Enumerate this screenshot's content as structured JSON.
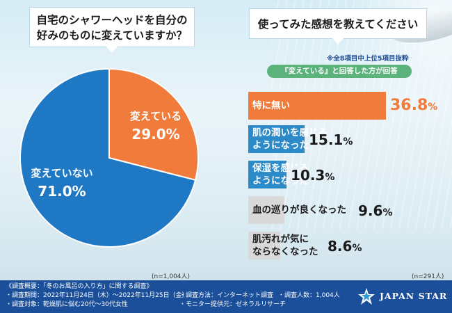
{
  "left_question": {
    "line1": "自宅のシャワーヘッドを自分の",
    "line2": "好みのものに変えていますか？"
  },
  "right_question": "使ってみた感想を教えてください",
  "right_note": "※全8項目中上位5項目抜粋",
  "right_filter": "『変えている』と回答した方が回答",
  "colors": {
    "orange": "#f07b3a",
    "blue": "#1f78c4",
    "gray": "#d9d9d9",
    "teal": "#2d8ac9"
  },
  "chart_data": [
    {
      "type": "pie",
      "title": "自宅のシャワーヘッドを自分の好みのものに変えていますか？",
      "slices": [
        {
          "label": "変えている",
          "value": 29.0,
          "display": "29.0%",
          "color": "#f07b3a"
        },
        {
          "label": "変えていない",
          "value": 71.0,
          "display": "71.0%",
          "color": "#1f78c4"
        }
      ],
      "n": "(n=1,004人)"
    },
    {
      "type": "bar",
      "title": "使ってみた感想を教えてください",
      "categories": [
        "特に無い",
        "肌の潤いを感じるようになった",
        "保湿を感じるようになった",
        "血の巡りが良くなった",
        "肌汚れが気にならなくなった"
      ],
      "label_lines": [
        [
          "特に無い"
        ],
        [
          "肌の潤いを感じる",
          "ようになった"
        ],
        [
          "保湿を感じる",
          "ようになった"
        ],
        [
          "血の巡りが良くなった"
        ],
        [
          "肌汚れが気に",
          "ならなくなった"
        ]
      ],
      "values": [
        36.8,
        15.1,
        10.3,
        9.6,
        8.6
      ],
      "display": [
        "36.8",
        "15.1",
        "10.3",
        "9.6",
        "8.6"
      ],
      "unit": "%",
      "n": "(n=291人)"
    }
  ],
  "footer": {
    "title": "《調査概要：「冬のお風呂の入り方」に関する調査》",
    "items": [
      "・調査期間：2022年11月24日（木）～2022年11月25日（金）",
      "・調査対象：乾燥肌に悩む20代～30代女性",
      "・調査方法：インターネット調査",
      "・モニター提供元：ゼネラルリサーチ",
      "・調査人数：1,004人"
    ],
    "brand": "JAPAN STAR"
  }
}
